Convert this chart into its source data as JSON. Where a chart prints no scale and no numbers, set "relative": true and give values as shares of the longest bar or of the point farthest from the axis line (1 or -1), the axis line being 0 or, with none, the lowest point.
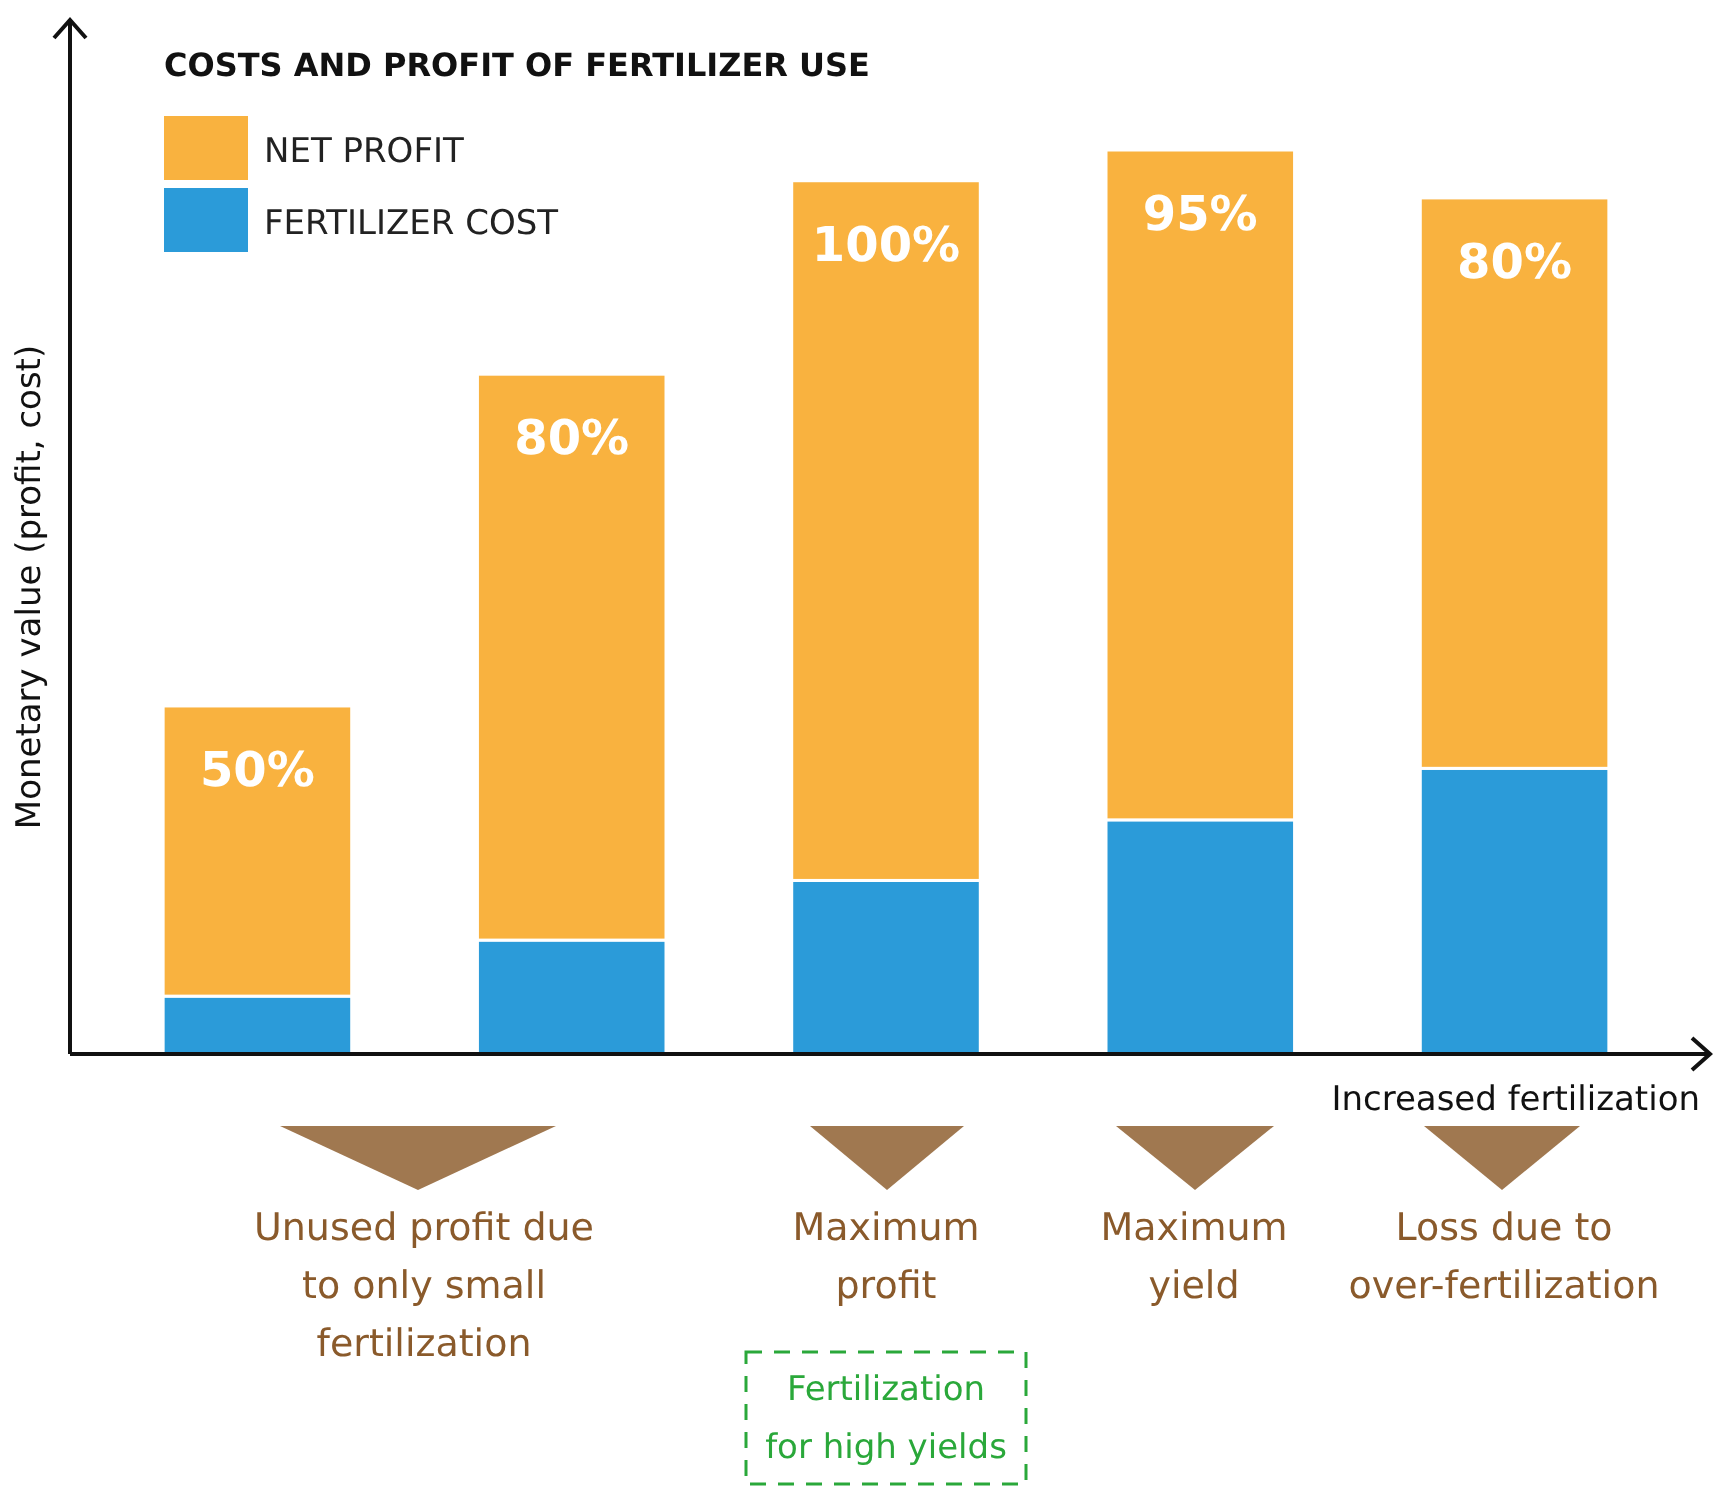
{
  "chart_data": {
    "type": "bar",
    "title": "COSTS AND PROFIT OF FERTILIZER USE",
    "xlabel": "Increased fertilization",
    "ylabel": "Monetary value (profit, cost)",
    "relative": true,
    "stacked": true,
    "legend": "top left",
    "categories": [
      null,
      null,
      null,
      null,
      null
    ],
    "series": [
      {
        "name": "FERTILIZER COST",
        "color": "#2b9bd9",
        "values": [
          0.064,
          0.126,
          0.192,
          0.259,
          0.316
        ]
      },
      {
        "name": "NET PROFIT",
        "color": "#f9b23f",
        "values": [
          0.321,
          0.626,
          0.774,
          0.741,
          0.631
        ]
      }
    ],
    "annotations": [
      "Unused profit due to only small fertilization",
      "Maximum profit",
      "Maximum yield",
      "Loss due to over-fertilization",
      "Fertilization for high yields",
      "50%",
      "80%",
      "100%",
      "95%",
      "80%"
    ]
  }
}
